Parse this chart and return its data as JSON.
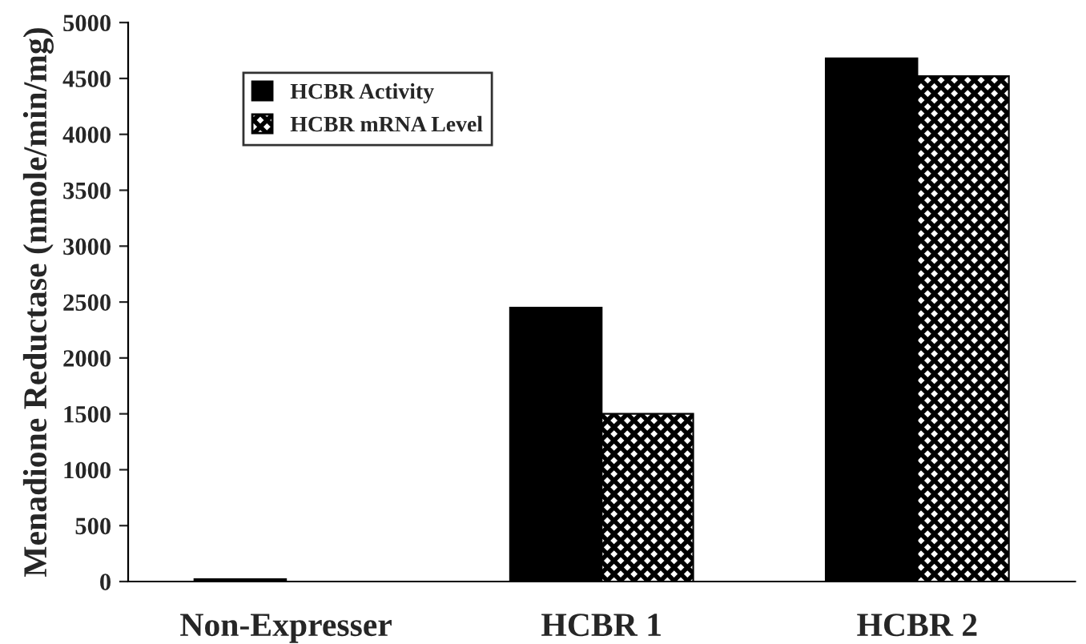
{
  "chart_data": {
    "type": "bar",
    "ylabel": "Menadione Reductase (nmole/min/mg)",
    "categories": [
      "Non-Expresser",
      "HCBR 1",
      "HCBR 2"
    ],
    "series": [
      {
        "name": "HCBR Activity",
        "color": "#000000",
        "values": [
          20,
          2450,
          4680
        ]
      },
      {
        "name": "HCBR mRNA Level",
        "color": "#000000",
        "values": [
          0,
          1500,
          4520
        ]
      }
    ],
    "ylim": [
      0,
      5000
    ],
    "yticks": [
      0,
      500,
      1000,
      1500,
      2000,
      2500,
      3000,
      3500,
      4000,
      4500,
      5000
    ],
    "grid": false,
    "legend": "top left"
  }
}
